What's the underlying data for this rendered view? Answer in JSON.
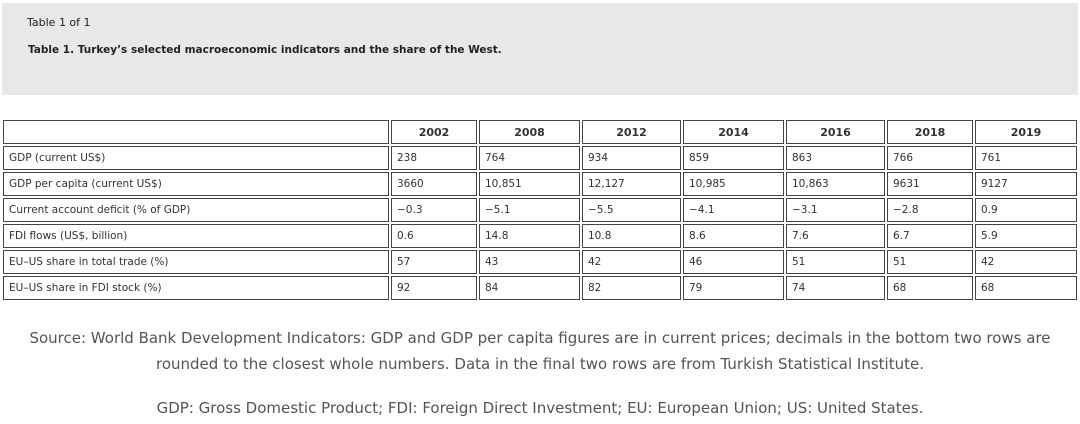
{
  "header": {
    "counter": "Table 1 of 1",
    "title": "Table 1. Turkey’s selected macroeconomic indicators and the share of the West."
  },
  "table": {
    "columns": [
      "",
      "2002",
      "2008",
      "2012",
      "2014",
      "2016",
      "2018",
      "2019"
    ],
    "rows": [
      [
        "GDP (current US$)",
        "238",
        "764",
        "934",
        "859",
        "863",
        "766",
        "761"
      ],
      [
        "GDP per capita (current US$)",
        "3660",
        "10,851",
        "12,127",
        "10,985",
        "10,863",
        "9631",
        "9127"
      ],
      [
        "Current account deficit (% of GDP)",
        "−0.3",
        "−5.1",
        "−5.5",
        "−4.1",
        "−3.1",
        "−2.8",
        "0.9"
      ],
      [
        "FDI flows (US$, billion)",
        "0.6",
        "14.8",
        "10.8",
        "8.6",
        "7.6",
        "6.7",
        "5.9"
      ],
      [
        "EU–US share in total trade (%)",
        "57",
        "43",
        "42",
        "46",
        "51",
        "51",
        "42"
      ],
      [
        "EU–US share in FDI stock (%)",
        "92",
        "84",
        "82",
        "79",
        "74",
        "68",
        "68"
      ]
    ]
  },
  "source": "Source: World Bank Development Indicators: GDP and GDP per capita figures are in current prices; decimals in the bottom two rows are rounded to the closest whole numbers. Data in the final two rows are from Turkish Statistical Institute.",
  "abbreviations": "GDP: Gross Domestic Product; FDI: Foreign Direct Investment; EU: European Union; US: United States."
}
